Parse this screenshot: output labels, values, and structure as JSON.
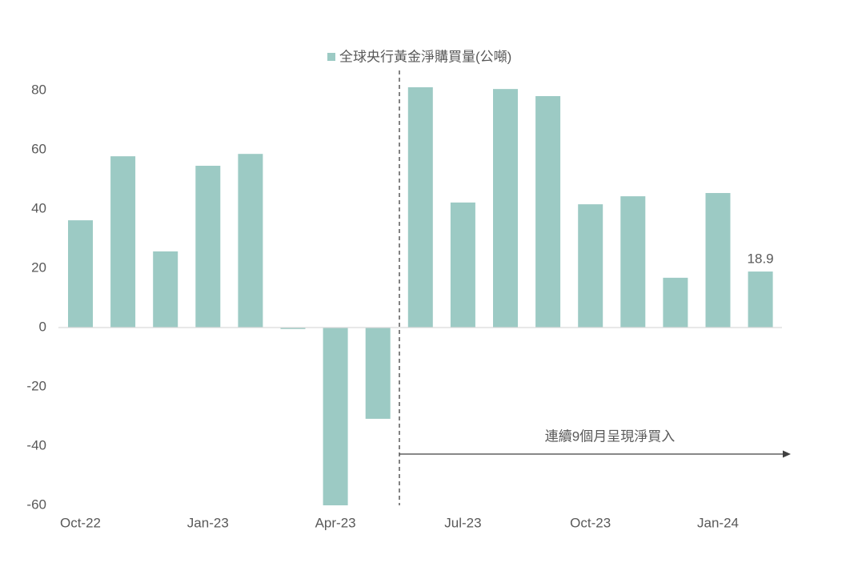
{
  "chart_data": {
    "type": "bar",
    "legend_label": "全球央行黃金淨購買量(公噸)",
    "annotation": "連續9個月呈現淨買入",
    "categories": [
      "Oct-22",
      null,
      null,
      "Jan-23",
      null,
      null,
      "Apr-23",
      null,
      null,
      "Jul-23",
      null,
      null,
      "Oct-23",
      null,
      null,
      "Jan-24",
      null
    ],
    "values": [
      36.2,
      57.8,
      25.7,
      54.6,
      58.6,
      -0.5,
      -60,
      -30.8,
      81.1,
      42.2,
      80.5,
      78.1,
      41.6,
      44.3,
      16.8,
      45.4,
      18.9
    ],
    "value_labels": [
      null,
      null,
      null,
      null,
      null,
      null,
      null,
      null,
      null,
      null,
      null,
      null,
      null,
      null,
      null,
      null,
      "18.9"
    ],
    "color": "#9ccac4",
    "ylim": [
      -60,
      80
    ],
    "yticks": [
      -60,
      -40,
      -20,
      0,
      20,
      40,
      60,
      80
    ],
    "grid": false
  }
}
